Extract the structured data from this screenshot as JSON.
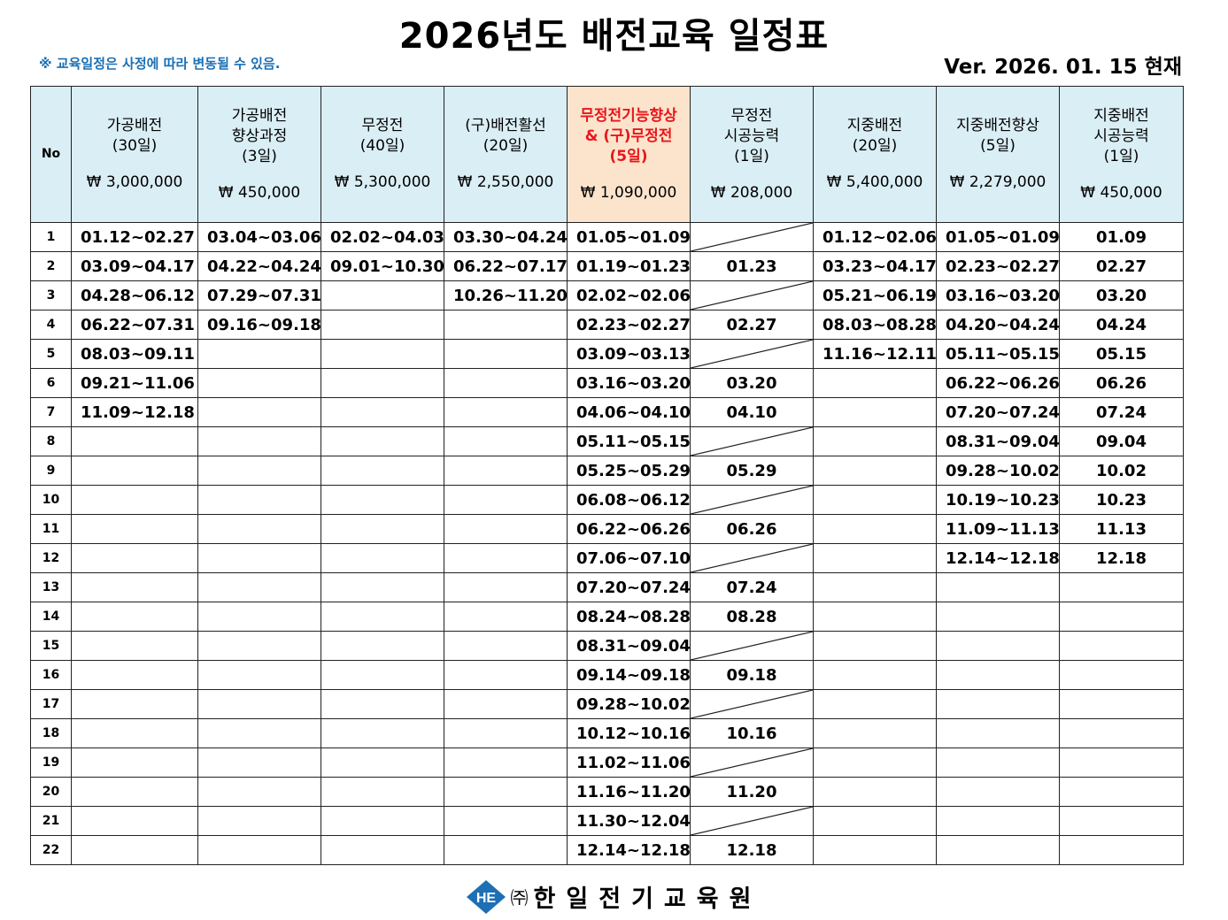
{
  "title": "2026년도 배전교육 일정표",
  "notice": "※ 교육일정은 사정에 따라 변동될 수 있음.",
  "version": "Ver. 2026. 01. 15 현재",
  "table": {
    "no_header": "No",
    "columns": [
      {
        "name": "가공배전\n(30일)",
        "price": "₩ 3,000,000"
      },
      {
        "name": "가공배전\n향상과정\n(3일)",
        "price": "₩ 450,000"
      },
      {
        "name": "무정전\n(40일)",
        "price": "₩ 5,300,000"
      },
      {
        "name": "(구)배전활선\n(20일)",
        "price": "₩ 2,550,000"
      },
      {
        "name": "무정전기능향상\n& (구)무정전\n(5일)",
        "price": "₩ 1,090,000",
        "highlight": true
      },
      {
        "name": "무정전\n시공능력\n(1일)",
        "price": "₩ 208,000"
      },
      {
        "name": "지중배전\n(20일)",
        "price": "₩ 5,400,000"
      },
      {
        "name": "지중배전향상\n(5일)",
        "price": "₩ 2,279,000"
      },
      {
        "name": "지중배전\n시공능력\n(1일)",
        "price": "₩ 450,000"
      }
    ],
    "rows": [
      {
        "no": "1",
        "cells": [
          "01.12~02.27",
          "03.04~03.06",
          "02.02~04.03",
          "03.30~04.24",
          "01.05~01.09",
          "/",
          "01.12~02.06",
          "01.05~01.09",
          "01.09"
        ]
      },
      {
        "no": "2",
        "cells": [
          "03.09~04.17",
          "04.22~04.24",
          "09.01~10.30",
          "06.22~07.17",
          "01.19~01.23",
          "01.23",
          "03.23~04.17",
          "02.23~02.27",
          "02.27"
        ]
      },
      {
        "no": "3",
        "cells": [
          "04.28~06.12",
          "07.29~07.31",
          "",
          "10.26~11.20",
          "02.02~02.06",
          "/",
          "05.21~06.19",
          "03.16~03.20",
          "03.20"
        ]
      },
      {
        "no": "4",
        "cells": [
          "06.22~07.31",
          "09.16~09.18",
          "",
          "",
          "02.23~02.27",
          "02.27",
          "08.03~08.28",
          "04.20~04.24",
          "04.24"
        ]
      },
      {
        "no": "5",
        "cells": [
          "08.03~09.11",
          "",
          "",
          "",
          "03.09~03.13",
          "/",
          "11.16~12.11",
          "05.11~05.15",
          "05.15"
        ]
      },
      {
        "no": "6",
        "cells": [
          "09.21~11.06",
          "",
          "",
          "",
          "03.16~03.20",
          "03.20",
          "",
          "06.22~06.26",
          "06.26"
        ]
      },
      {
        "no": "7",
        "cells": [
          "11.09~12.18",
          "",
          "",
          "",
          "04.06~04.10",
          "04.10",
          "",
          "07.20~07.24",
          "07.24"
        ]
      },
      {
        "no": "8",
        "cells": [
          "",
          "",
          "",
          "",
          "05.11~05.15",
          "/",
          "",
          "08.31~09.04",
          "09.04"
        ]
      },
      {
        "no": "9",
        "cells": [
          "",
          "",
          "",
          "",
          "05.25~05.29",
          "05.29",
          "",
          "09.28~10.02",
          "10.02"
        ]
      },
      {
        "no": "10",
        "cells": [
          "",
          "",
          "",
          "",
          "06.08~06.12",
          "/",
          "",
          "10.19~10.23",
          "10.23"
        ]
      },
      {
        "no": "11",
        "cells": [
          "",
          "",
          "",
          "",
          "06.22~06.26",
          "06.26",
          "",
          "11.09~11.13",
          "11.13"
        ]
      },
      {
        "no": "12",
        "cells": [
          "",
          "",
          "",
          "",
          "07.06~07.10",
          "/",
          "",
          "12.14~12.18",
          "12.18"
        ]
      },
      {
        "no": "13",
        "cells": [
          "",
          "",
          "",
          "",
          "07.20~07.24",
          "07.24",
          "",
          "",
          ""
        ]
      },
      {
        "no": "14",
        "cells": [
          "",
          "",
          "",
          "",
          "08.24~08.28",
          "08.28",
          "",
          "",
          ""
        ]
      },
      {
        "no": "15",
        "cells": [
          "",
          "",
          "",
          "",
          "08.31~09.04",
          "/",
          "",
          "",
          ""
        ]
      },
      {
        "no": "16",
        "cells": [
          "",
          "",
          "",
          "",
          "09.14~09.18",
          "09.18",
          "",
          "",
          ""
        ]
      },
      {
        "no": "17",
        "cells": [
          "",
          "",
          "",
          "",
          "09.28~10.02",
          "/",
          "",
          "",
          ""
        ]
      },
      {
        "no": "18",
        "cells": [
          "",
          "",
          "",
          "",
          "10.12~10.16",
          "10.16",
          "",
          "",
          ""
        ]
      },
      {
        "no": "19",
        "cells": [
          "",
          "",
          "",
          "",
          "11.02~11.06",
          "/",
          "",
          "",
          ""
        ]
      },
      {
        "no": "20",
        "cells": [
          "",
          "",
          "",
          "",
          "11.16~11.20",
          "11.20",
          "",
          "",
          ""
        ]
      },
      {
        "no": "21",
        "cells": [
          "",
          "",
          "",
          "",
          "11.30~12.04",
          "/",
          "",
          "",
          ""
        ]
      },
      {
        "no": "22",
        "cells": [
          "",
          "",
          "",
          "",
          "12.14~12.18",
          "12.18",
          "",
          "",
          ""
        ]
      }
    ]
  },
  "footer": {
    "logo_icon": "he-diamond-logo-icon",
    "logo_text": "HE",
    "corp_mark": "㈜",
    "org_name": "한일전기교육원"
  },
  "colors": {
    "header_bg": "#daeef5",
    "highlight_bg": "#fce4cc",
    "highlight_text": "#e8161b",
    "notice_text": "#1a6fb5",
    "logo_blue": "#1e6fb4"
  }
}
